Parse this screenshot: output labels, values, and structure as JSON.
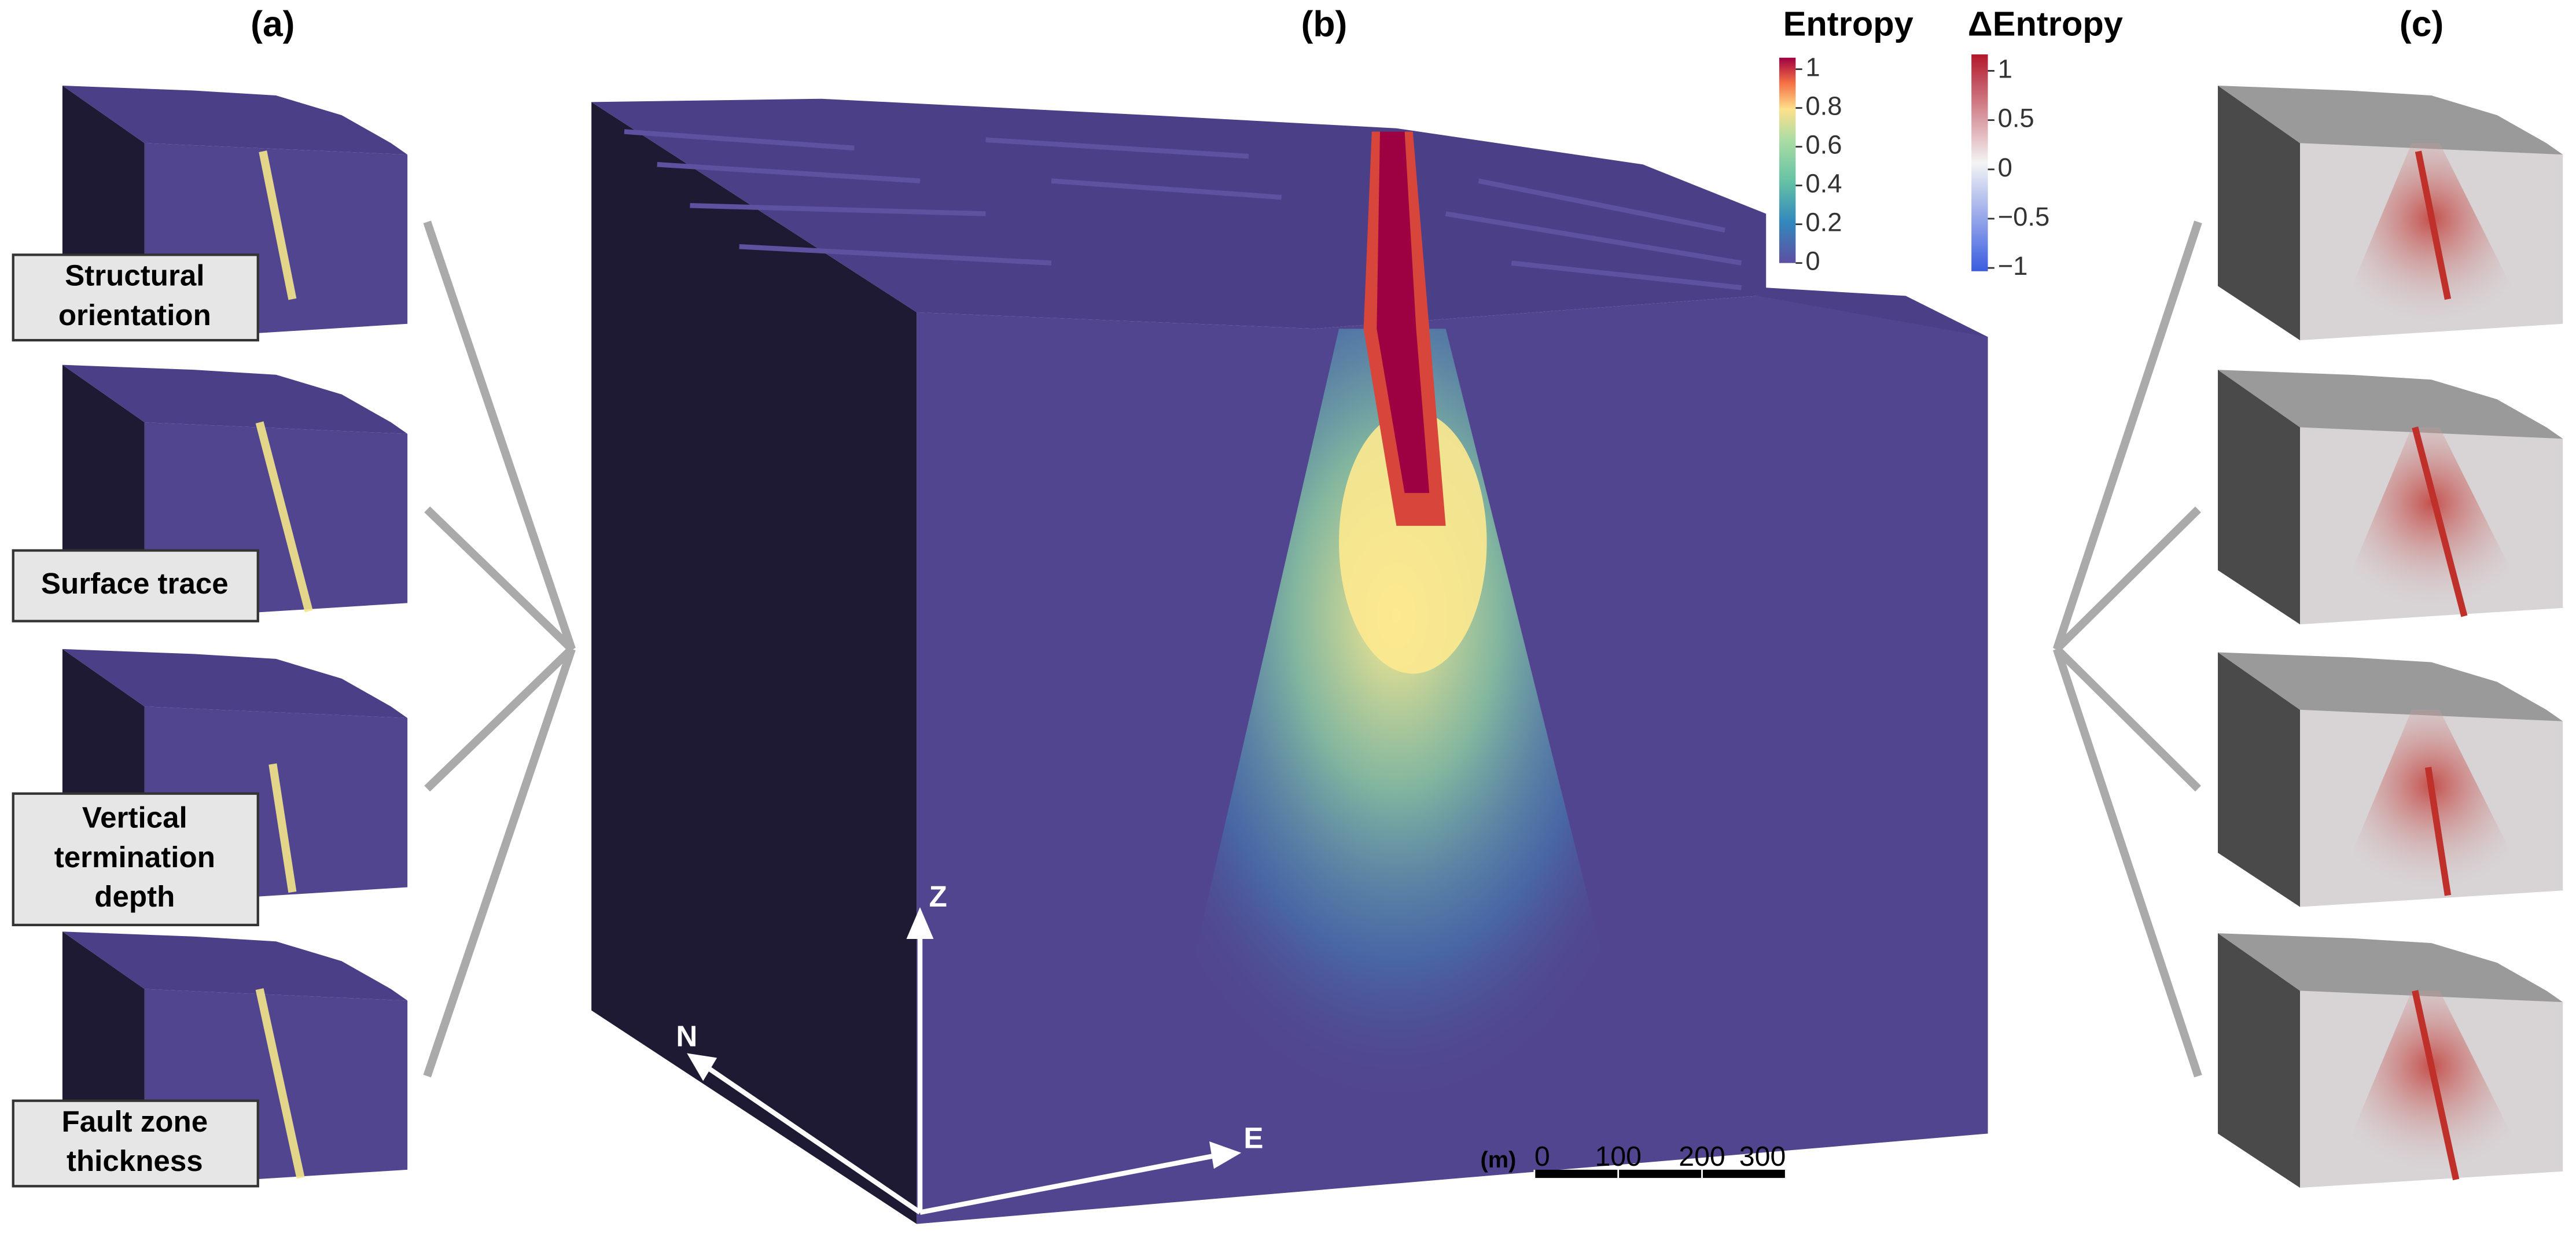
{
  "panels": {
    "a": {
      "label": "(a)",
      "items": [
        [
          "Structural",
          "orientation"
        ],
        [
          "Surface trace"
        ],
        [
          "Vertical",
          "termination",
          "depth"
        ],
        [
          "Fault zone",
          "thickness"
        ]
      ]
    },
    "b": {
      "label": "(b)"
    },
    "c": {
      "label": "(c)"
    }
  },
  "entropy_colorbar": {
    "title": "Entropy",
    "lim": [
      0,
      1
    ],
    "ticks": [
      0,
      0.2,
      0.4,
      0.6,
      0.8,
      1
    ]
  },
  "delta_colorbar": {
    "title": "ΔEntropy",
    "lim": [
      -1,
      1
    ],
    "ticks": [
      {
        "value": -1,
        "label": "−1"
      },
      {
        "value": -0.5,
        "label": "−0.5"
      },
      0,
      0.5,
      1
    ]
  },
  "axes": {
    "z": "Z",
    "n": "N",
    "e": "E"
  },
  "scale_bar": {
    "unit": "(m)",
    "ticks": [
      0,
      100,
      200,
      300
    ]
  }
}
